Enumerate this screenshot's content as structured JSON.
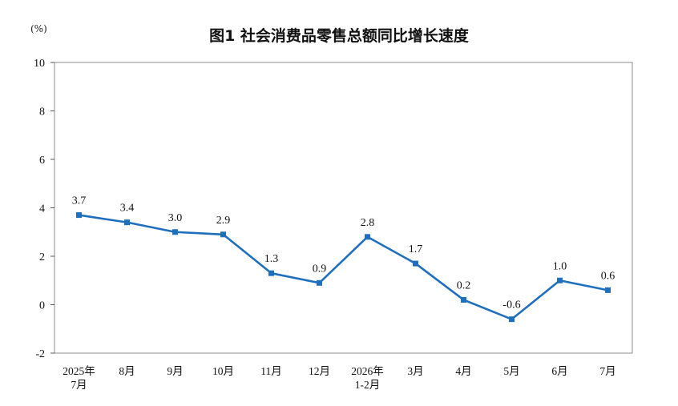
{
  "title": "图1  社会消费品零售总额同比增长速度",
  "unit": "(%)",
  "chart_data": {
    "type": "line",
    "title": "图1  社会消费品零售总额同比增长速度",
    "ylabel": "(%)",
    "xlabel": "",
    "ylim": [
      -2,
      10
    ],
    "yticks": [
      -2,
      0,
      2,
      4,
      6,
      8,
      10
    ],
    "categories": [
      [
        "2025年",
        "7月"
      ],
      [
        "8月"
      ],
      [
        "9月"
      ],
      [
        "10月"
      ],
      [
        "11月"
      ],
      [
        "12月"
      ],
      [
        "2026年",
        "1-2月"
      ],
      [
        "3月"
      ],
      [
        "4月"
      ],
      [
        "5月"
      ],
      [
        "6月"
      ],
      [
        "7月"
      ]
    ],
    "series": [
      {
        "values": [
          3.7,
          3.4,
          3.0,
          2.9,
          1.3,
          0.9,
          2.8,
          1.7,
          0.2,
          -0.6,
          1.0,
          0.6
        ],
        "labels": [
          "3.7",
          "3.4",
          "3.0",
          "2.9",
          "1.3",
          "0.9",
          "2.8",
          "1.7",
          "0.2",
          "-0.6",
          "1.0",
          "0.6"
        ],
        "color": "#1F6FBF"
      }
    ],
    "grid": false,
    "legend": "none"
  }
}
